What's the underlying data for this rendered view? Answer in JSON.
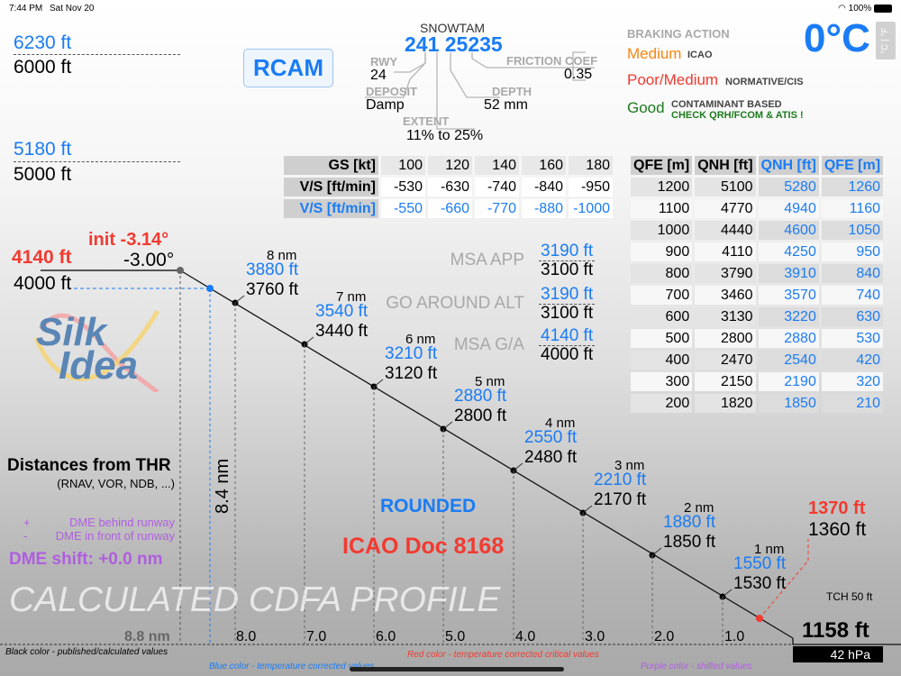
{
  "status_bar": {
    "time": "7:44 PM",
    "date": "Sat Nov 20",
    "battery": "100%"
  },
  "left_alts": [
    {
      "corrected": "6230 ft",
      "published": "6000 ft"
    },
    {
      "corrected": "5180 ft",
      "published": "5000 ft"
    }
  ],
  "rcam_button": "RCAM",
  "snowtam": {
    "title": "SNOWTAM",
    "code_a": "241",
    "code_b": "25235",
    "rwy_label": "RWY",
    "rwy": "24",
    "deposit_label": "DEPOSIT",
    "deposit": "Damp",
    "extent_label": "EXTENT",
    "extent": "11% to 25%",
    "depth_label": "DEPTH",
    "depth": "52 mm",
    "friction_label": "FRICTION COEF",
    "friction": "0.35"
  },
  "braking": {
    "title": "BRAKING ACTION",
    "icao_value": "Medium",
    "icao_label": "ICAO",
    "cis_value": "Poor/Medium",
    "cis_label": "NORMATIVE/CIS",
    "cont_value": "Good",
    "cont_label": "CONTAMINANT BASED",
    "cont_warning": "CHECK QRH/FCOM & ATIS !"
  },
  "temperature": {
    "value": "0°C",
    "unit_toggle": "°C | °F"
  },
  "gs_table": {
    "rows": [
      [
        "GS [kt]",
        "100",
        "120",
        "140",
        "160",
        "180"
      ],
      [
        "V/S [ft/min]",
        "-530",
        "-630",
        "-740",
        "-840",
        "-950"
      ],
      [
        "V/S [ft/min]",
        "-550",
        "-660",
        "-770",
        "-880",
        "-1000"
      ]
    ]
  },
  "q_table": {
    "header": [
      "QFE [m]",
      "QNH [ft]",
      "QNH [ft]",
      "QFE [m]"
    ],
    "rows": [
      [
        "1200",
        "5100",
        "5280",
        "1260"
      ],
      [
        "1100",
        "4770",
        "4940",
        "1160"
      ],
      [
        "1000",
        "4440",
        "4600",
        "1050"
      ],
      [
        "900",
        "4110",
        "4250",
        "950"
      ],
      [
        "800",
        "3790",
        "3910",
        "840"
      ],
      [
        "700",
        "3460",
        "3570",
        "740"
      ],
      [
        "600",
        "3130",
        "3220",
        "630"
      ],
      [
        "500",
        "2800",
        "2880",
        "530"
      ],
      [
        "400",
        "2470",
        "2540",
        "420"
      ],
      [
        "300",
        "2150",
        "2190",
        "320"
      ],
      [
        "200",
        "1820",
        "1850",
        "210"
      ]
    ]
  },
  "init": {
    "angle_corrected": "init -3.14°",
    "angle": "-3.00°",
    "alt_corrected": "4140 ft",
    "alt": "4000 ft"
  },
  "msa": [
    {
      "label": "MSA APP",
      "corrected": "3190 ft",
      "alt": "3100 ft"
    },
    {
      "label": "GO AROUND ALT",
      "corrected": "3190 ft",
      "alt": "3100 ft"
    },
    {
      "label": "MSA G/A",
      "corrected": "4140 ft",
      "alt": "4000 ft"
    }
  ],
  "profile": [
    {
      "nm": "8 nm",
      "corrected": "3880 ft",
      "alt": "3760 ft"
    },
    {
      "nm": "7 nm",
      "corrected": "3540 ft",
      "alt": "3440 ft"
    },
    {
      "nm": "6 nm",
      "corrected": "3210 ft",
      "alt": "3120 ft"
    },
    {
      "nm": "5 nm",
      "corrected": "2880 ft",
      "alt": "2800 ft"
    },
    {
      "nm": "4 nm",
      "corrected": "2550 ft",
      "alt": "2480 ft"
    },
    {
      "nm": "3 nm",
      "corrected": "2210 ft",
      "alt": "2170 ft"
    },
    {
      "nm": "2 nm",
      "corrected": "1880 ft",
      "alt": "1850 ft"
    },
    {
      "nm": "1 nm",
      "corrected": "1550 ft",
      "alt": "1530 ft"
    }
  ],
  "threshold": {
    "corrected": "1370 ft",
    "alt": "1360 ft",
    "tch": "TCH 50 ft",
    "elevation": "1158 ft",
    "qfe": "42 hPa"
  },
  "distance_axis": [
    "8.8 nm",
    "8.0",
    "7.0",
    "6.0",
    "5.0",
    "4.0",
    "3.0",
    "2.0",
    "1.0"
  ],
  "vertical_dist": "8.4 nm",
  "distances": {
    "title": "Distances from THR",
    "subtitle": "(RNAV, VOR, NDB, ...)",
    "plus": "+",
    "plus_text": "DME behind runway",
    "minus": "-",
    "minus_text": "DME in front of runway",
    "shift": "DME shift: +0.0 nm"
  },
  "rounded": "ROUNDED",
  "icao_doc": "ICAO Doc 8168",
  "watermark": "CALCULATED CDFA PROFILE",
  "logo": "Silk Idea",
  "legend": {
    "black": "Black color - published/calculated values",
    "red": "Red color - temperature corrected critical values",
    "blue": "Blue color - temperature corrected values",
    "purple": "Purple color - shifted values"
  }
}
